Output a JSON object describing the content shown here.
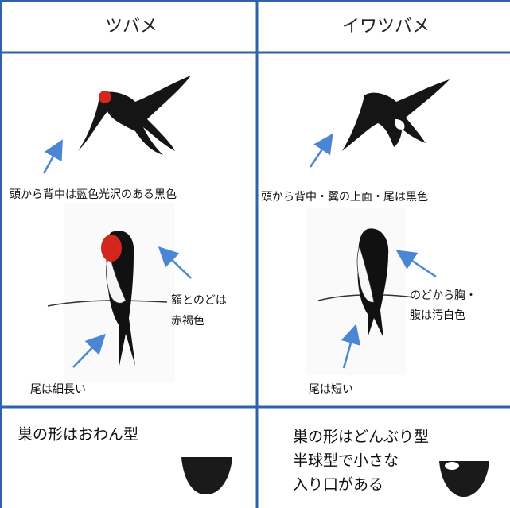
{
  "table": {
    "header": [
      "ツバメ",
      "イワツバメ"
    ],
    "columns": [
      {
        "back": "頭から背中は藍色光沢のある黒色",
        "throat": [
          "額とのどは",
          "赤褐色"
        ],
        "tail": "尾は細長い",
        "nest": [
          "巣の形はおわん型"
        ]
      },
      {
        "back": "頭から背中・翼の上面・尾は黒色",
        "throat": [
          "のどから胸・",
          "腹は汚白色"
        ],
        "tail": "尾は短い",
        "nest": [
          "巣の形はどんぶり型",
          "半球型で小さな",
          "入り口がある"
        ]
      }
    ]
  }
}
